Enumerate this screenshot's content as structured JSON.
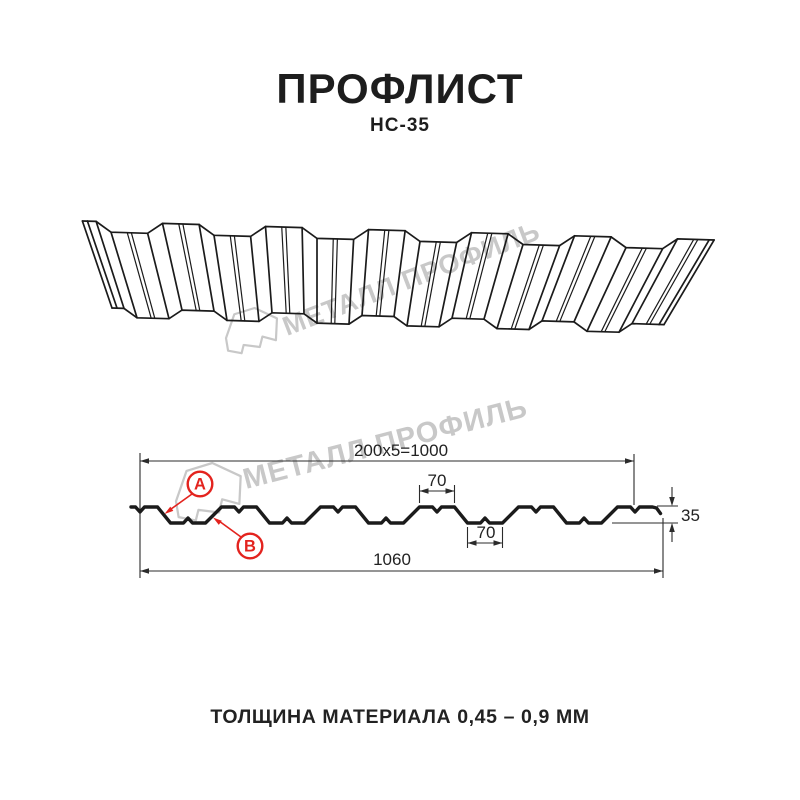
{
  "header": {
    "title": "ПРОФЛИСТ",
    "subtitle": "НС-35"
  },
  "watermark": {
    "brand_text": "МЕТАЛЛ ПРОФИЛЬ"
  },
  "cross_section": {
    "dim_pitch": "200x5=1000",
    "dim_crest_width": "70",
    "dim_valley_width": "70",
    "dim_height": "35",
    "dim_overall_width": "1060",
    "marker_a": "А",
    "marker_b": "В"
  },
  "footer": {
    "material_note": "ТОЛЩИНА МАТЕРИАЛА 0,45 – 0,9 ММ"
  },
  "colors": {
    "accent_red": "#e3231e",
    "line_black": "#1b1b1b",
    "dimension_gray": "#2b2b2b",
    "watermark_gray": "#c8c8c8"
  }
}
